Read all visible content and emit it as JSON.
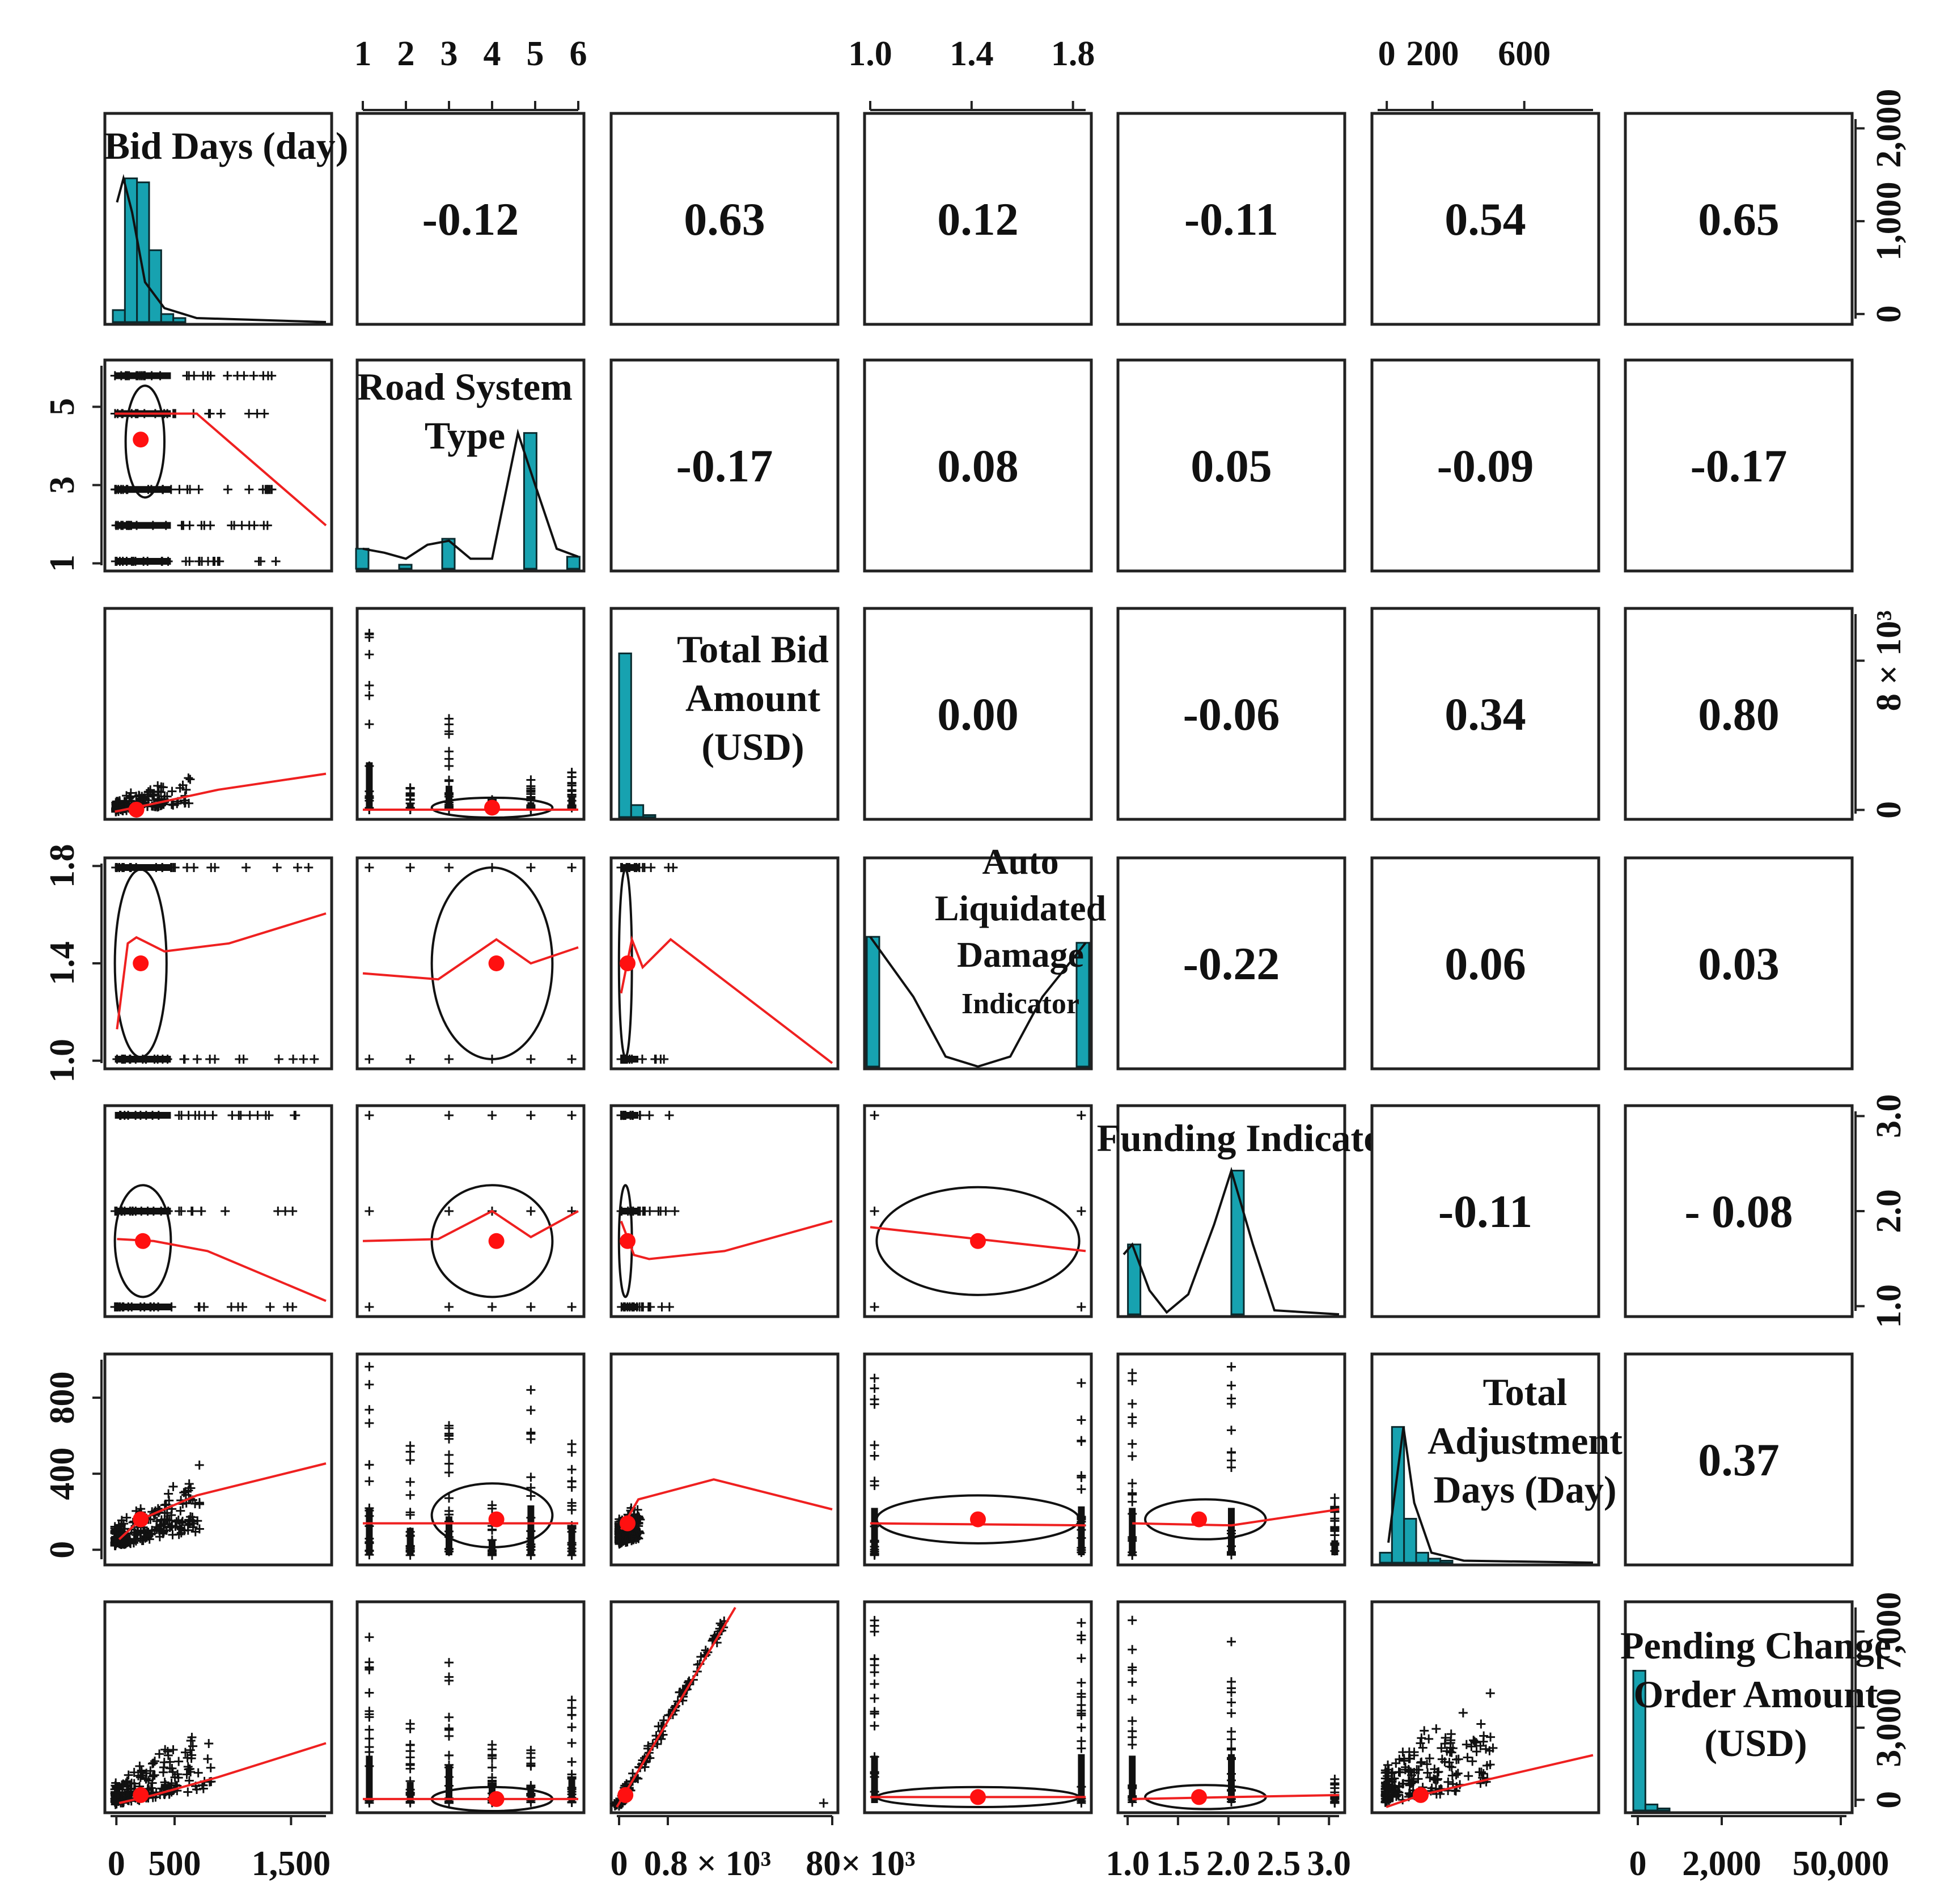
{
  "chart_data": {
    "type": "scatter-matrix",
    "variables": [
      {
        "id": "bid_days",
        "label_lines": [
          "Bid Days (day)"
        ]
      },
      {
        "id": "road_system_type",
        "label_lines": [
          "Road System",
          "Type"
        ]
      },
      {
        "id": "total_bid_amount",
        "label_lines": [
          "Total Bid",
          "Amount",
          "(USD)"
        ]
      },
      {
        "id": "auto_ld",
        "label_lines": [
          "Auto",
          "Liquidated",
          "Damage",
          "Indicator"
        ]
      },
      {
        "id": "funding",
        "label_lines": [
          "Funding Indicator"
        ]
      },
      {
        "id": "total_adj_days",
        "label_lines": [
          "Total",
          "Adjustment",
          "Days (Day)"
        ]
      },
      {
        "id": "pending_co",
        "label_lines": [
          "Pending Change",
          "Order Amount",
          "(USD)"
        ]
      }
    ],
    "correlations": [
      {
        "row": 0,
        "col": 1,
        "value": "-0.12"
      },
      {
        "row": 0,
        "col": 2,
        "value": "0.63"
      },
      {
        "row": 0,
        "col": 3,
        "value": "0.12"
      },
      {
        "row": 0,
        "col": 4,
        "value": "-0.11"
      },
      {
        "row": 0,
        "col": 5,
        "value": "0.54"
      },
      {
        "row": 0,
        "col": 6,
        "value": "0.65"
      },
      {
        "row": 1,
        "col": 2,
        "value": "-0.17"
      },
      {
        "row": 1,
        "col": 3,
        "value": "0.08"
      },
      {
        "row": 1,
        "col": 4,
        "value": "0.05"
      },
      {
        "row": 1,
        "col": 5,
        "value": "-0.09"
      },
      {
        "row": 1,
        "col": 6,
        "value": "-0.17"
      },
      {
        "row": 2,
        "col": 3,
        "value": "0.00"
      },
      {
        "row": 2,
        "col": 4,
        "value": "-0.06"
      },
      {
        "row": 2,
        "col": 5,
        "value": "0.34"
      },
      {
        "row": 2,
        "col": 6,
        "value": "0.80"
      },
      {
        "row": 3,
        "col": 4,
        "value": "-0.22"
      },
      {
        "row": 3,
        "col": 5,
        "value": "0.06"
      },
      {
        "row": 3,
        "col": 6,
        "value": "0.03"
      },
      {
        "row": 4,
        "col": 5,
        "value": "-0.11"
      },
      {
        "row": 4,
        "col": 6,
        "value": "- 0.08"
      },
      {
        "row": 5,
        "col": 6,
        "value": "0.37"
      }
    ],
    "axis_ticks": {
      "top": [
        {
          "col": 1,
          "ticks": [
            {
              "v": 1,
              "label": "1"
            },
            {
              "v": 2,
              "label": "2"
            },
            {
              "v": 3,
              "label": "3"
            },
            {
              "v": 4,
              "label": "4"
            },
            {
              "v": 5,
              "label": "5"
            },
            {
              "v": 6,
              "label": "6"
            }
          ],
          "range": [
            1,
            6
          ]
        },
        {
          "col": 3,
          "ticks": [
            {
              "v": 1.0,
              "label": "1.0"
            },
            {
              "v": 1.4,
              "label": "1.4"
            },
            {
              "v": 1.8,
              "label": "1.8"
            }
          ],
          "range": [
            1.0,
            1.85
          ]
        },
        {
          "col": 5,
          "ticks": [
            {
              "v": 0,
              "label": "0"
            },
            {
              "v": 200,
              "label": "200"
            },
            {
              "v": 600,
              "label": "600"
            }
          ],
          "range": [
            -40,
            900
          ]
        }
      ],
      "bottom": [
        {
          "col": 0,
          "ticks": [
            {
              "v": 0,
              "label": "0"
            },
            {
              "v": 500,
              "label": "500"
            },
            {
              "v": 1500,
              "label": "1,500"
            }
          ],
          "range": [
            -50,
            1800
          ]
        },
        {
          "col": 2,
          "ticks": [
            {
              "v": 0,
              "label": "0"
            },
            {
              "v": 0.8,
              "label": "0.8 × 10³"
            },
            {
              "v": 80,
              "label": "80× 10³"
            }
          ],
          "range": [
            -2,
            80
          ]
        },
        {
          "col": 4,
          "ticks": [
            {
              "v": 1.0,
              "label": "1.0"
            },
            {
              "v": 1.5,
              "label": "1.5"
            },
            {
              "v": 2.0,
              "label": "2.0"
            },
            {
              "v": 2.5,
              "label": "2.5"
            },
            {
              "v": 3.0,
              "label": "3.0"
            }
          ],
          "range": [
            0.96,
            3.1
          ]
        },
        {
          "col": 6,
          "ticks": [
            {
              "v": 0,
              "label": "0"
            },
            {
              "v": 2000,
              "label": "2,000"
            },
            {
              "v": 50000,
              "label": "50,000"
            }
          ],
          "range": [
            -100,
            55000
          ]
        }
      ],
      "left": [
        {
          "row": 1,
          "ticks": [
            {
              "v": 1,
              "label": "1"
            },
            {
              "v": 3,
              "label": "3"
            },
            {
              "v": 5,
              "label": "5"
            }
          ],
          "range": [
            0.95,
            6.05
          ]
        },
        {
          "row": 3,
          "ticks": [
            {
              "v": 1.0,
              "label": "1.0"
            },
            {
              "v": 1.4,
              "label": "1.4"
            },
            {
              "v": 1.8,
              "label": "1.8"
            }
          ],
          "range": [
            0.99,
            1.81
          ]
        },
        {
          "row": 5,
          "ticks": [
            {
              "v": 0,
              "label": "0"
            },
            {
              "v": 400,
              "label": "400"
            },
            {
              "v": 800,
              "label": "800"
            }
          ],
          "range": [
            -50,
            1000
          ]
        }
      ],
      "right": [
        {
          "row": 0,
          "ticks": [
            {
              "v": 0,
              "label": "0"
            },
            {
              "v": 1000,
              "label": "1,000"
            },
            {
              "v": 2000,
              "label": "2,000"
            }
          ],
          "range": [
            -50,
            2100
          ]
        },
        {
          "row": 2,
          "ticks": [
            {
              "v": 0,
              "label": "0"
            },
            {
              "v": 8,
              "label": "8 × 10³"
            }
          ],
          "range": [
            -0.2,
            10.5
          ]
        },
        {
          "row": 4,
          "ticks": [
            {
              "v": 1.0,
              "label": "1.0"
            },
            {
              "v": 2.0,
              "label": "2.0"
            },
            {
              "v": 3.0,
              "label": "3.0"
            }
          ],
          "range": [
            0.95,
            3.05
          ]
        },
        {
          "row": 6,
          "ticks": [
            {
              "v": 0,
              "label": "0"
            },
            {
              "v": 3000,
              "label": "3,000"
            },
            {
              "v": 7000,
              "label": "7,000"
            }
          ],
          "range": [
            -300,
            8000
          ]
        }
      ]
    },
    "histograms": [
      {
        "var": 0,
        "bars": [
          0.06,
          0.72,
          0.7,
          0.36,
          0.04,
          0.02
        ],
        "density": [
          [
            0.03,
            0.6
          ],
          [
            0.06,
            0.72
          ],
          [
            0.1,
            0.55
          ],
          [
            0.16,
            0.2
          ],
          [
            0.25,
            0.07
          ],
          [
            0.4,
            0.02
          ],
          [
            1.0,
            0.0
          ]
        ]
      },
      {
        "var": 1,
        "bars": [
          0.1,
          0.02,
          0.15,
          0.0,
          0.68,
          0.06
        ],
        "density": [
          [
            0.0,
            0.1
          ],
          [
            0.1,
            0.08
          ],
          [
            0.2,
            0.05
          ],
          [
            0.3,
            0.12
          ],
          [
            0.4,
            0.14
          ],
          [
            0.5,
            0.05
          ],
          [
            0.6,
            0.05
          ],
          [
            0.72,
            0.68
          ],
          [
            0.8,
            0.42
          ],
          [
            0.9,
            0.1
          ],
          [
            1.0,
            0.06
          ]
        ]
      },
      {
        "var": 2,
        "bars": [
          0.82,
          0.06,
          0.01,
          0.0,
          0.0,
          0.0
        ],
        "density": []
      },
      {
        "var": 3,
        "bars": [
          0.65,
          0.0,
          0.0,
          0.0,
          0.0,
          0.62
        ],
        "density": [
          [
            0.0,
            0.65
          ],
          [
            0.2,
            0.35
          ],
          [
            0.35,
            0.05
          ],
          [
            0.5,
            0.0
          ],
          [
            0.65,
            0.05
          ],
          [
            0.8,
            0.35
          ],
          [
            1.0,
            0.62
          ]
        ]
      },
      {
        "var": 4,
        "bars": [
          0.35,
          0.0,
          0.0,
          0.0,
          0.72,
          0.0
        ],
        "density": [
          [
            0.0,
            0.3
          ],
          [
            0.04,
            0.35
          ],
          [
            0.12,
            0.12
          ],
          [
            0.2,
            0.01
          ],
          [
            0.3,
            0.1
          ],
          [
            0.42,
            0.45
          ],
          [
            0.5,
            0.72
          ],
          [
            0.6,
            0.35
          ],
          [
            0.7,
            0.02
          ],
          [
            1.0,
            0.0
          ]
        ]
      },
      {
        "var": 5,
        "bars": [
          0.05,
          0.68,
          0.22,
          0.05,
          0.02,
          0.01
        ],
        "density": [
          [
            0.05,
            0.1
          ],
          [
            0.12,
            0.68
          ],
          [
            0.17,
            0.3
          ],
          [
            0.25,
            0.05
          ],
          [
            0.4,
            0.01
          ],
          [
            1.0,
            0.0
          ]
        ]
      },
      {
        "var": 6,
        "bars": [
          0.7,
          0.03,
          0.01,
          0.0,
          0.0,
          0.0
        ],
        "density": []
      }
    ]
  }
}
